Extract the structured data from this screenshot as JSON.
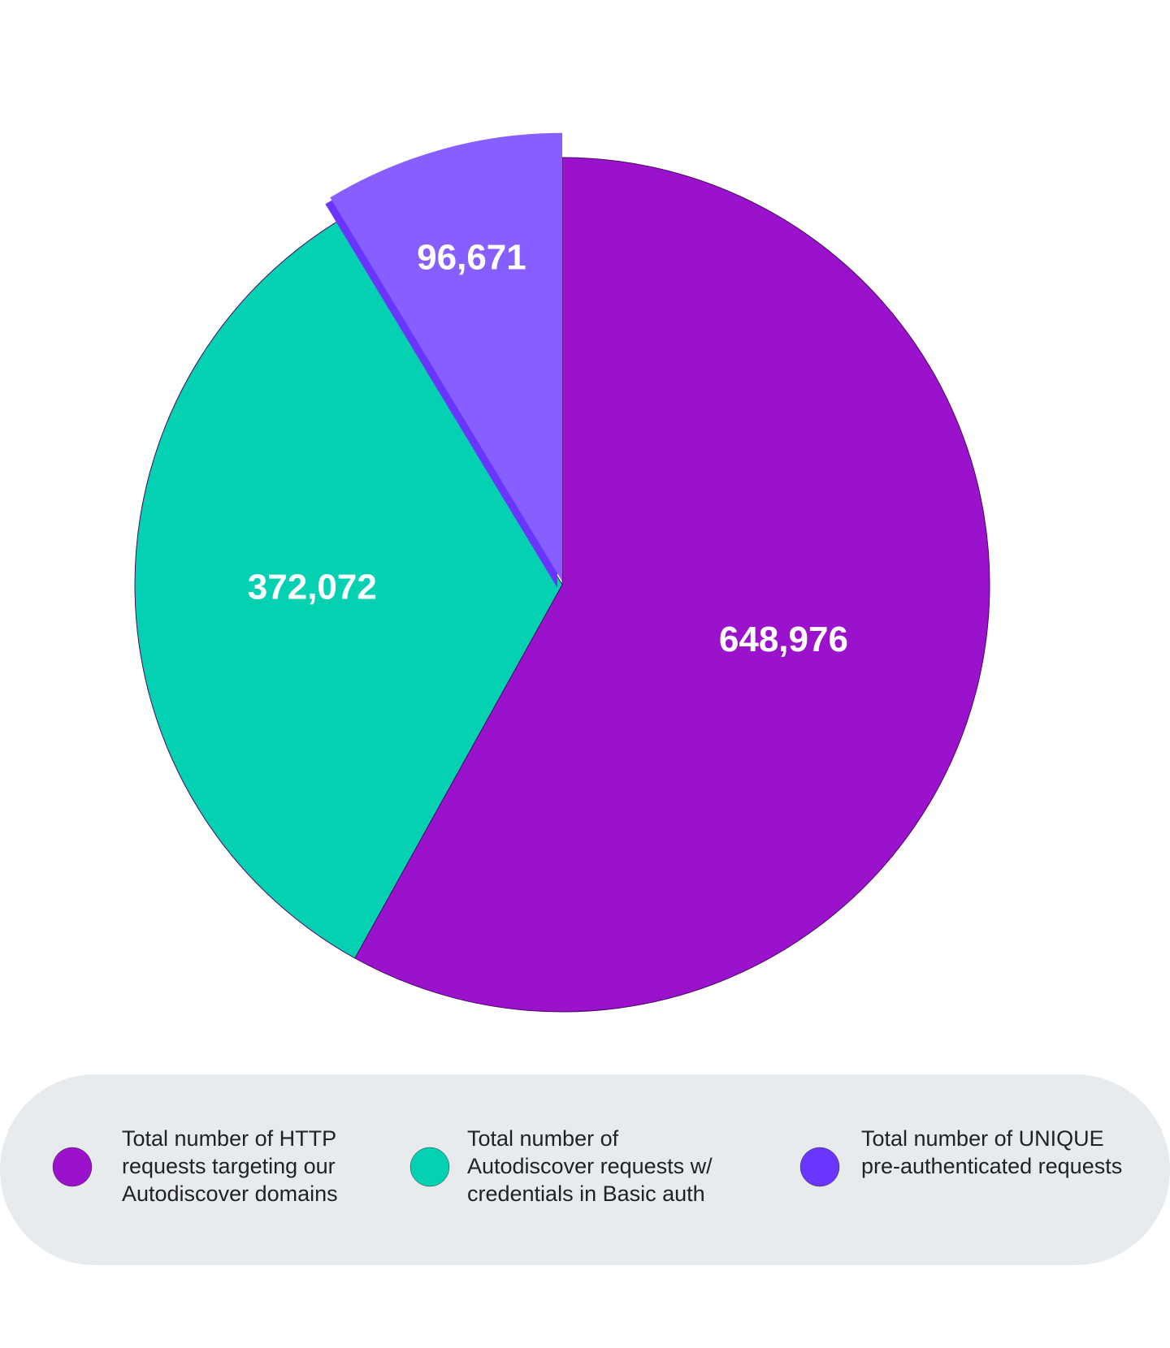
{
  "chart_data": {
    "type": "pie",
    "categories": [
      "Total number of HTTP requests targeting our Autodiscover domains",
      "Total number of Autodiscover requests w/ credentials in Basic auth",
      "Total number of UNIQUE pre-authenticated requests"
    ],
    "values": [
      648976,
      372072,
      96671
    ],
    "value_labels": [
      "648,976",
      "372,072",
      "96,671"
    ],
    "colors": [
      "#9b12cc",
      "#03d1b2",
      "#6a36ff"
    ],
    "exploded": [
      false,
      false,
      true
    ]
  }
}
